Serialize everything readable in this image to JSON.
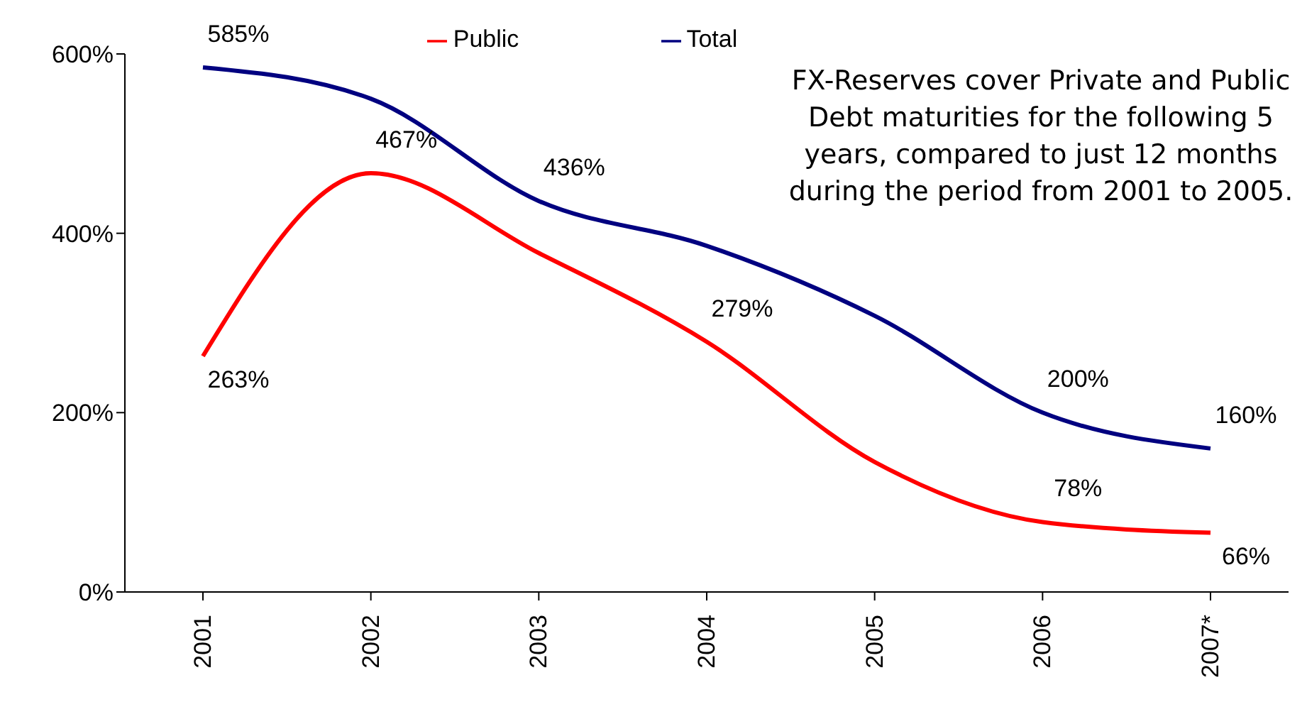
{
  "chart_data": {
    "type": "line",
    "categories": [
      "2001",
      "2002",
      "2003",
      "2004",
      "2005",
      "2006",
      "2007*"
    ],
    "series": [
      {
        "name": "Total",
        "color": "#000080",
        "values": [
          585,
          550,
          436,
          386,
          308,
          200,
          160
        ],
        "value_labels": [
          "585%",
          null,
          "436%",
          null,
          null,
          "200%",
          "160%"
        ]
      },
      {
        "name": "Public",
        "color": "#ff0000",
        "values": [
          263,
          467,
          378,
          279,
          145,
          78,
          66
        ],
        "value_labels": [
          "263%",
          "467%",
          null,
          "279%",
          null,
          "78%",
          "66%"
        ]
      }
    ],
    "ylim": [
      0,
      600
    ],
    "yticks": [
      {
        "value": 0,
        "label": "0%"
      },
      {
        "value": 200,
        "label": "200%"
      },
      {
        "value": 400,
        "label": "400%"
      },
      {
        "value": 600,
        "label": "600%"
      }
    ],
    "grid": false,
    "legend": "top",
    "marker": "none",
    "line_style": "solid",
    "annotations": [
      "FX-Reserves cover Private and Public Debt maturities for the following 5 years, compared to just 12 months during the period from 2001 to 2005."
    ]
  }
}
